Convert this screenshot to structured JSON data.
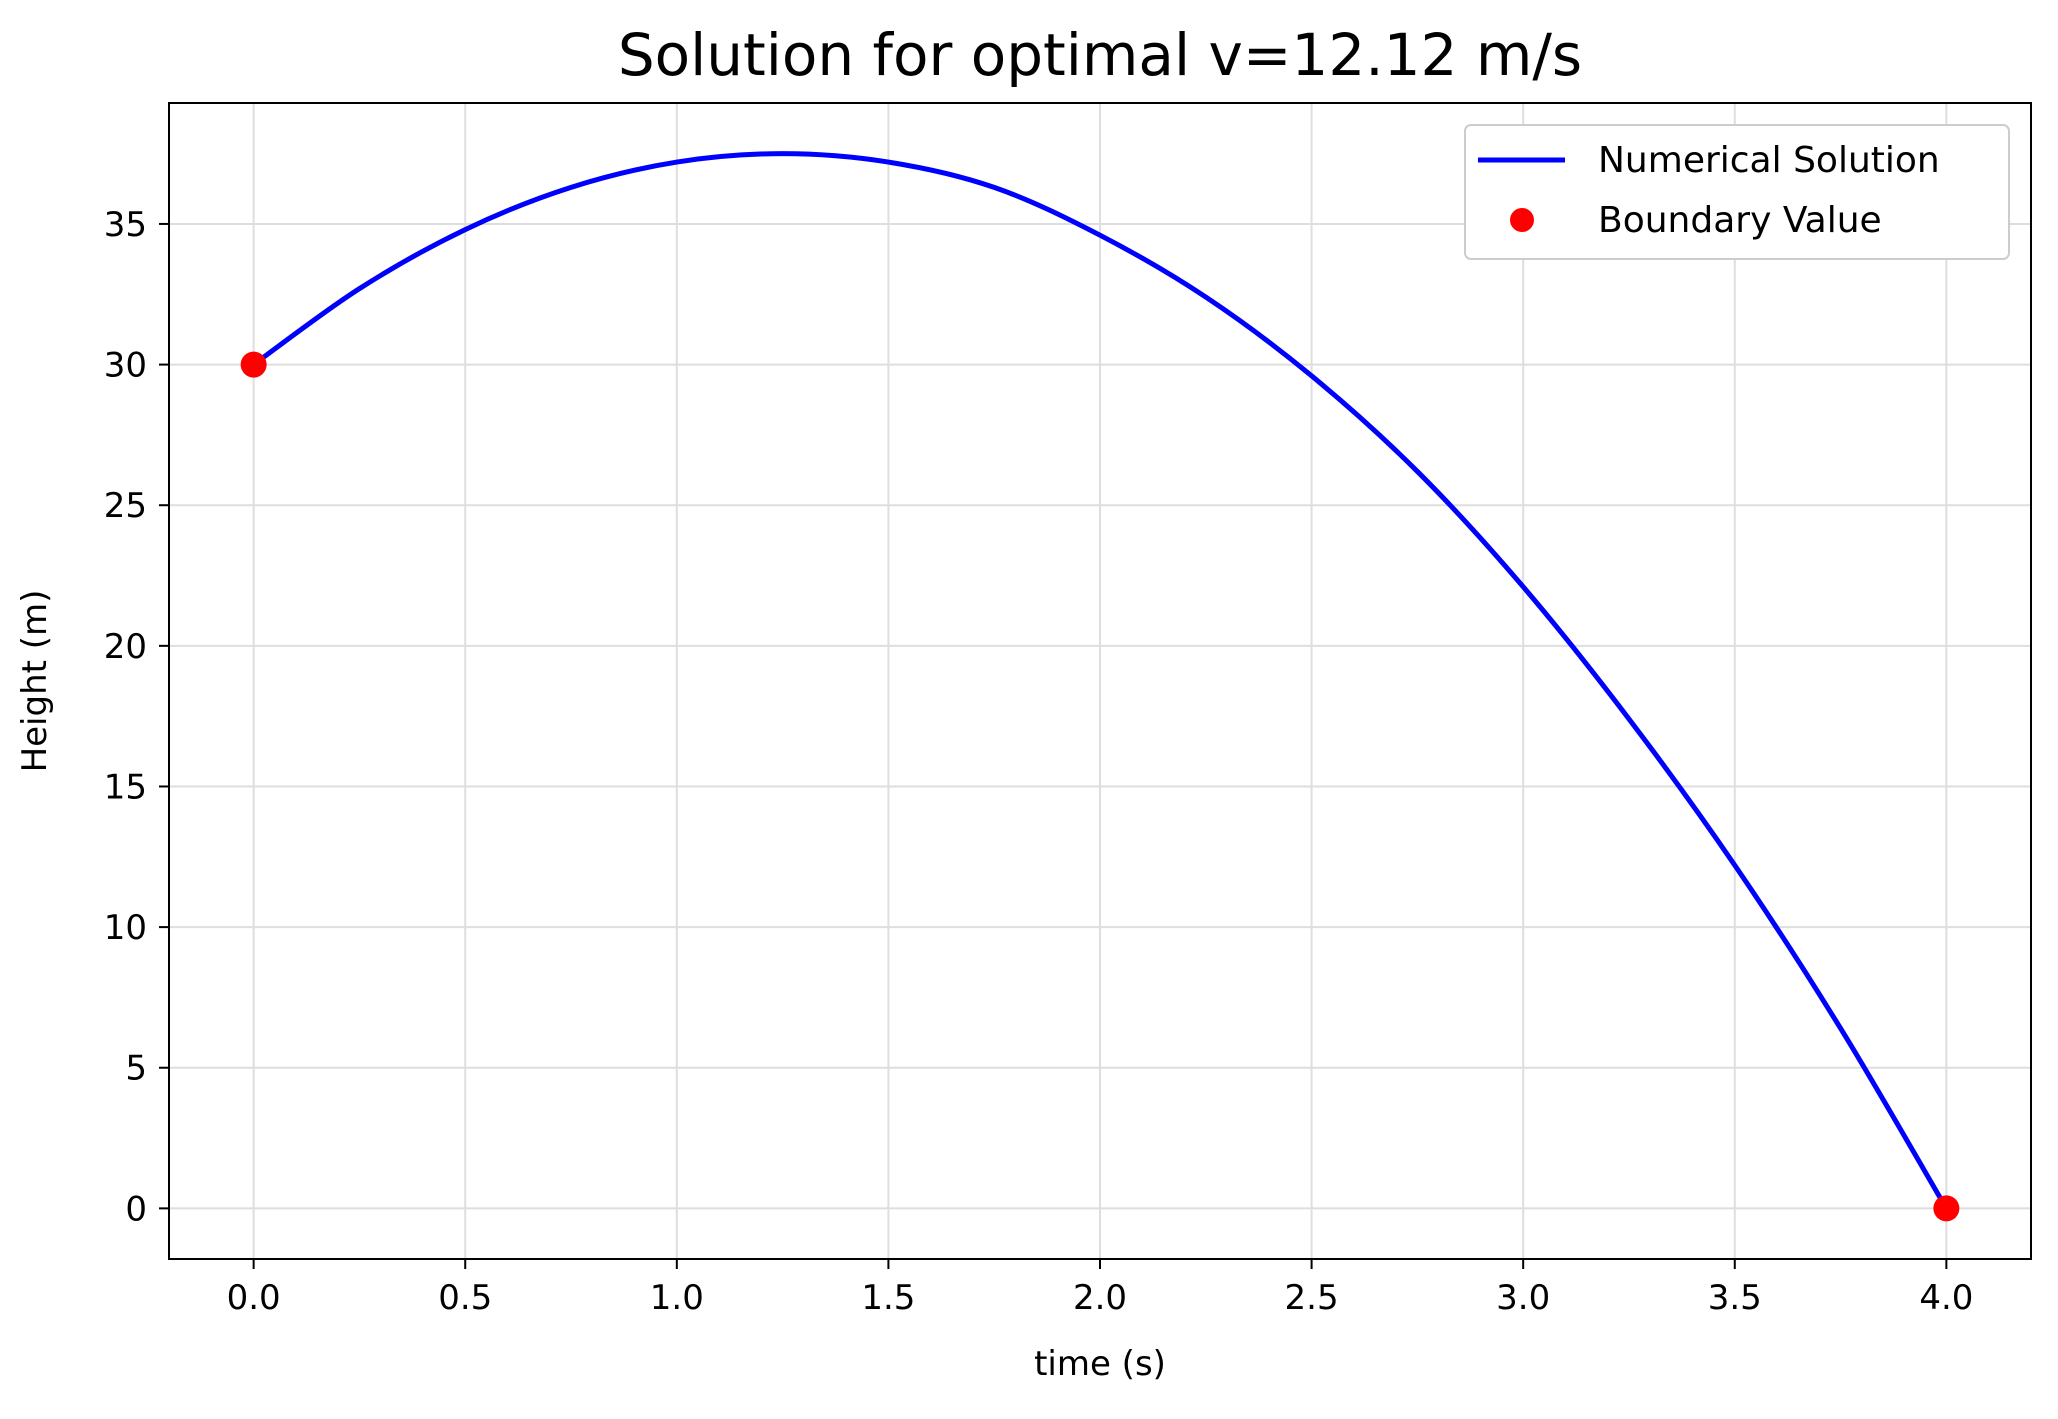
{
  "chart_data": {
    "type": "line",
    "title": "Solution for optimal v=12.12 m/s",
    "xlabel": "time (s)",
    "ylabel": "Height (m)",
    "xlim": [
      -0.2,
      4.2
    ],
    "ylim": [
      -1.8,
      39.3
    ],
    "xticks": [
      0.0,
      0.5,
      1.0,
      1.5,
      2.0,
      2.5,
      3.0,
      3.5,
      4.0
    ],
    "xtick_labels": [
      "0.0",
      "0.5",
      "1.0",
      "1.5",
      "2.0",
      "2.5",
      "3.0",
      "3.5",
      "4.0"
    ],
    "yticks": [
      0,
      5,
      10,
      15,
      20,
      25,
      30,
      35
    ],
    "ytick_labels": [
      "0",
      "5",
      "10",
      "15",
      "20",
      "25",
      "30",
      "35"
    ],
    "grid": true,
    "legend_position": "top-right",
    "series": [
      {
        "name": "Numerical Solution",
        "kind": "line",
        "color": "#0000ff",
        "x": [
          0.0,
          0.25,
          0.5,
          0.75,
          1.0,
          1.25,
          1.5,
          1.75,
          2.0,
          2.25,
          2.5,
          2.75,
          3.0,
          3.25,
          3.5,
          3.75,
          4.0
        ],
        "y": [
          30.0,
          32.7,
          34.8,
          36.3,
          37.2,
          37.5,
          37.2,
          36.3,
          34.6,
          32.4,
          29.6,
          26.2,
          22.1,
          17.4,
          12.2,
          6.4,
          0.0
        ]
      },
      {
        "name": "Boundary Value",
        "kind": "marker",
        "color": "#ff0000",
        "x": [
          0.0,
          4.0
        ],
        "y": [
          30.0,
          0.0
        ]
      }
    ]
  }
}
